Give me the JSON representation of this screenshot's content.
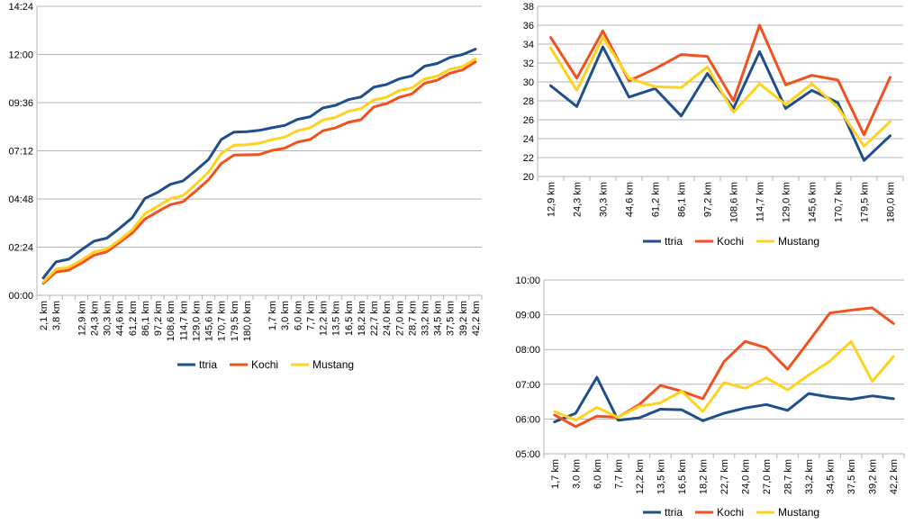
{
  "colors": {
    "ttria": "#1f4e8c",
    "kochi": "#f2511f",
    "mustang": "#ffd21f",
    "grid": "#b3b3b3"
  },
  "chart_data": [
    {
      "type": "line",
      "id": "cumulative",
      "title": "",
      "xlabel": "",
      "ylabel": "",
      "grid": "horizontal",
      "legend": "bottom",
      "ylim": [
        "00:00",
        "14:24"
      ],
      "yticks": [
        "00:00",
        "02:24",
        "04:48",
        "07:12",
        "09:36",
        "12:00",
        "14:24"
      ],
      "categories": [
        "2,1 km",
        "3,8 km",
        "",
        "12,9 km",
        "24,3 km",
        "30,3 km",
        "44,6 km",
        "61,2 km",
        "86,1 km",
        "97,2 km",
        "108,6 km",
        "114,7 km",
        "129,0 km",
        "145,6 km",
        "170,7 km",
        "179,5 km",
        "180,0 km",
        "",
        "1,7 km",
        "3,0 km",
        "6,0 km",
        "7,7 km",
        "12,2 km",
        "13,5 km",
        "16,5 km",
        "18,2 km",
        "22,7 km",
        "24,0 km",
        "27,0 km",
        "28,7 km",
        "33,2 km",
        "34,5 km",
        "37,5 km",
        "39,2 km",
        "42,2 km"
      ],
      "series": [
        {
          "name": "ttria",
          "values": [
            "00:52",
            "01:40",
            "01:48",
            "02:16",
            "02:42",
            "02:51",
            "03:20",
            "03:52",
            "04:50",
            "05:08",
            "05:32",
            "05:42",
            "06:13",
            "06:46",
            "07:46",
            "08:08",
            "08:09",
            "08:13",
            "08:21",
            "08:28",
            "08:46",
            "08:54",
            "09:20",
            "09:28",
            "09:45",
            "09:53",
            "10:22",
            "10:30",
            "10:47",
            "10:56",
            "11:25",
            "11:33",
            "11:51",
            "12:00",
            "12:16"
          ]
        },
        {
          "name": "Kochi",
          "values": [
            "00:36",
            "01:10",
            "01:15",
            "01:36",
            "02:00",
            "02:10",
            "02:38",
            "03:06",
            "03:48",
            "04:10",
            "04:31",
            "04:40",
            "05:12",
            "05:45",
            "06:34",
            "06:59",
            "07:00",
            "07:01",
            "07:13",
            "07:20",
            "07:38",
            "07:46",
            "08:12",
            "08:21",
            "08:37",
            "08:45",
            "09:23",
            "09:33",
            "09:52",
            "10:02",
            "10:34",
            "10:43",
            "11:04",
            "11:14",
            "11:38"
          ]
        },
        {
          "name": "Mustang",
          "values": [
            "00:40",
            "01:18",
            "01:24",
            "01:45",
            "02:10",
            "02:18",
            "02:45",
            "03:16",
            "04:04",
            "04:26",
            "04:49",
            "04:58",
            "05:32",
            "06:08",
            "07:04",
            "07:29",
            "07:30",
            "07:35",
            "07:45",
            "07:53",
            "08:12",
            "08:21",
            "08:44",
            "08:52",
            "09:10",
            "09:18",
            "09:44",
            "09:52",
            "10:12",
            "10:20",
            "10:47",
            "10:55",
            "11:16",
            "11:24",
            "11:47"
          ]
        }
      ]
    },
    {
      "type": "line",
      "id": "bike-speed",
      "title": "",
      "xlabel": "",
      "ylabel": "",
      "grid": "horizontal",
      "legend": "bottom",
      "ylim": [
        20,
        38
      ],
      "yticks": [
        "20",
        "22",
        "24",
        "26",
        "28",
        "30",
        "32",
        "34",
        "36",
        "38"
      ],
      "categories": [
        "12,9 km",
        "24,3 km",
        "30,3 km",
        "44,6 km",
        "61,2 km",
        "86,1 km",
        "97,2 km",
        "108,6 km",
        "114,7 km",
        "129,0 km",
        "145,6 km",
        "170,7 km",
        "179,5 km",
        "180,0 km"
      ],
      "series": [
        {
          "name": "ttria",
          "values": [
            29.6,
            27.4,
            33.7,
            28.4,
            29.3,
            26.4,
            30.9,
            27.2,
            33.2,
            27.2,
            29.1,
            27.8,
            21.7,
            24.3
          ]
        },
        {
          "name": "Kochi",
          "values": [
            34.7,
            30.4,
            35.4,
            30.1,
            31.4,
            32.9,
            32.7,
            28.0,
            36.0,
            29.7,
            30.7,
            30.2,
            24.4,
            30.5
          ]
        },
        {
          "name": "Mustang",
          "values": [
            33.6,
            29.1,
            34.7,
            30.4,
            29.5,
            29.4,
            31.6,
            26.8,
            29.8,
            27.6,
            29.8,
            27.3,
            23.2,
            25.8
          ]
        }
      ]
    },
    {
      "type": "line",
      "id": "run-pace",
      "title": "",
      "xlabel": "",
      "ylabel": "",
      "grid": "horizontal",
      "legend": "bottom",
      "ylim": [
        "05:00",
        "10:00"
      ],
      "yticks": [
        "05:00",
        "06:00",
        "07:00",
        "08:00",
        "09:00",
        "10:00"
      ],
      "categories": [
        "1,7 km",
        "3,0 km",
        "6,0 km",
        "7,7 km",
        "12,2 km",
        "13,5 km",
        "16,5 km",
        "18,2 km",
        "22,7 km",
        "24,0 km",
        "27,0 km",
        "28,7 km",
        "33,2 km",
        "34,5 km",
        "37,5 km",
        "39,2 km",
        "42,2 km"
      ],
      "series": [
        {
          "name": "ttria",
          "values": [
            "05:55",
            "06:10",
            "07:12",
            "05:58",
            "06:02",
            "06:17",
            "06:16",
            "05:57",
            "06:10",
            "06:19",
            "06:25",
            "06:15",
            "06:44",
            "06:38",
            "06:34",
            "06:40",
            "06:35"
          ]
        },
        {
          "name": "Kochi",
          "values": [
            "06:07",
            "05:47",
            "06:05",
            "06:03",
            "06:25",
            "06:58",
            "06:48",
            "06:35",
            "07:39",
            "08:14",
            "08:03",
            "07:26",
            "08:14",
            "09:03",
            "09:08",
            "09:12",
            "08:45"
          ]
        },
        {
          "name": "Mustang",
          "values": [
            "06:13",
            "05:58",
            "06:20",
            "06:03",
            "06:22",
            "06:28",
            "06:48",
            "06:13",
            "07:03",
            "06:53",
            "07:11",
            "06:50",
            "07:16",
            "07:40",
            "08:14",
            "07:05",
            "07:48"
          ]
        }
      ]
    }
  ]
}
